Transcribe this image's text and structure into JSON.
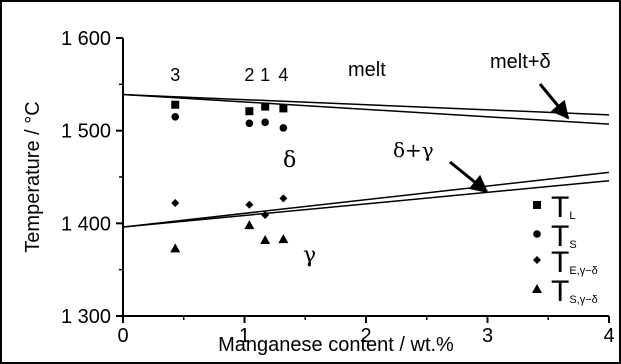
{
  "chart_data": {
    "type": "scatter",
    "xlabel": "Manganese content / wt.%",
    "ylabel": "Temperature / °C",
    "xlim": [
      0,
      4
    ],
    "ylim": [
      1300,
      1600
    ],
    "x_ticks": [
      "0",
      "1",
      "2",
      "3",
      "4"
    ],
    "y_ticks": [
      "1 300",
      "1 400",
      "1 500",
      "1 600"
    ],
    "grid": false,
    "legend_position": "bottom-right",
    "sample_labels": [
      {
        "text": "3",
        "x": 0.43
      },
      {
        "text": "2",
        "x": 1.04
      },
      {
        "text": "1",
        "x": 1.17
      },
      {
        "text": "4",
        "x": 1.32
      }
    ],
    "series": [
      {
        "name": "T_L",
        "marker": "square",
        "x": [
          0.43,
          1.04,
          1.17,
          1.32
        ],
        "y": [
          1528,
          1521,
          1526,
          1524
        ]
      },
      {
        "name": "T_S",
        "marker": "circle",
        "x": [
          0.43,
          1.04,
          1.17,
          1.32
        ],
        "y": [
          1515,
          1508,
          1509,
          1503
        ]
      },
      {
        "name": "T_E,γ−δ",
        "marker": "diamond",
        "x": [
          0.43,
          1.04,
          1.17,
          1.32
        ],
        "y": [
          1422,
          1420,
          1409,
          1427
        ]
      },
      {
        "name": "T_S,γ−δ",
        "marker": "triangle",
        "x": [
          0.43,
          1.04,
          1.17,
          1.32
        ],
        "y": [
          1373,
          1398,
          1382,
          1383
        ]
      }
    ],
    "lines": [
      {
        "x": [
          0,
          4
        ],
        "y": [
          1539,
          1517
        ]
      },
      {
        "x": [
          0,
          4
        ],
        "y": [
          1539,
          1507
        ]
      },
      {
        "x": [
          0,
          4
        ],
        "y": [
          1396,
          1455
        ]
      },
      {
        "x": [
          0,
          4
        ],
        "y": [
          1396,
          1446
        ]
      }
    ],
    "legend": [
      {
        "marker": "square",
        "main": "T",
        "sub": "L"
      },
      {
        "marker": "circle",
        "main": "T",
        "sub": "S"
      },
      {
        "marker": "diamond",
        "main": "T",
        "sub": "E,γ−δ"
      },
      {
        "marker": "triangle",
        "main": "T",
        "sub": "S,γ−δ"
      }
    ],
    "annotations": {
      "melt": "melt",
      "melt_delta": "melt+δ",
      "delta": "δ",
      "delta_gamma": "δ+γ",
      "gamma": "γ"
    }
  }
}
